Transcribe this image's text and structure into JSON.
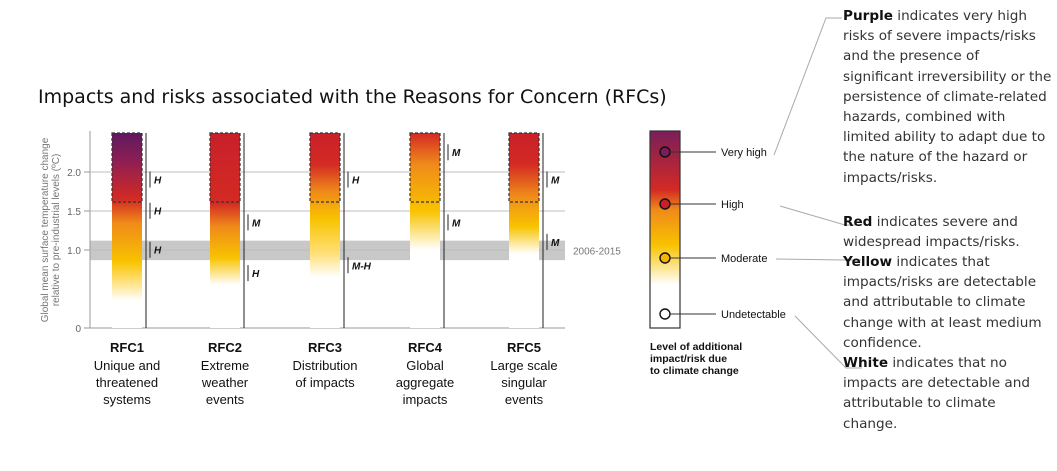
{
  "chart_data": {
    "type": "bar",
    "title": "Impacts and risks associated with the Reasons for Concern (RFCs)",
    "ylabel_line1": "Global mean surface temperature change",
    "ylabel_line2": "relative to pre-industrial levels (ºC)",
    "ylim": [
      0,
      2.5
    ],
    "yticks": [
      "0",
      "1.0",
      "1.5",
      "2.0"
    ],
    "ytick_values": [
      0,
      1.0,
      1.5,
      2.0
    ],
    "reference_band": {
      "label": "2006-2015",
      "y0": 0.87,
      "y1": 1.12
    },
    "series": [
      {
        "code": "RFC1",
        "desc": [
          "Unique and",
          "threatened",
          "systems"
        ],
        "stops": [
          [
            0.35,
            "#ffffff"
          ],
          [
            0.6,
            "#ffe07a"
          ],
          [
            0.85,
            "#f8c300"
          ],
          [
            1.35,
            "#ef8a1a"
          ],
          [
            1.65,
            "#d42a23"
          ],
          [
            2.15,
            "#8c1e55"
          ],
          [
            2.5,
            "#5e1a5e"
          ]
        ],
        "confidence": [
          {
            "y": 0.85,
            "label": "H"
          },
          {
            "y": 1.35,
            "label": "H"
          },
          {
            "y": 1.75,
            "label": "H"
          }
        ]
      },
      {
        "code": "RFC2",
        "desc": [
          "Extreme",
          "weather",
          "events"
        ],
        "stops": [
          [
            0.55,
            "#ffffff"
          ],
          [
            0.9,
            "#f8c300"
          ],
          [
            1.3,
            "#ef8a1a"
          ],
          [
            1.6,
            "#d42a23"
          ],
          [
            2.5,
            "#c8202a"
          ]
        ],
        "confidence": [
          {
            "y": 0.55,
            "label": "H"
          },
          {
            "y": 1.2,
            "label": "M"
          }
        ]
      },
      {
        "code": "RFC3",
        "desc": [
          "Distribution",
          "of impacts"
        ],
        "stops": [
          [
            0.65,
            "#ffffff"
          ],
          [
            0.95,
            "#ffe07a"
          ],
          [
            1.4,
            "#f8c300"
          ],
          [
            1.75,
            "#ef8a1a"
          ],
          [
            2.1,
            "#d42a23"
          ],
          [
            2.5,
            "#c8202a"
          ]
        ],
        "confidence": [
          {
            "y": 0.65,
            "label": "M-H"
          },
          {
            "y": 1.75,
            "label": "H"
          }
        ]
      },
      {
        "code": "RFC4",
        "desc": [
          "Global",
          "aggregate",
          "impacts"
        ],
        "stops": [
          [
            1.0,
            "#ffffff"
          ],
          [
            1.5,
            "#f8c300"
          ],
          [
            2.1,
            "#ef8a1a"
          ],
          [
            2.5,
            "#d42a23"
          ]
        ],
        "confidence": [
          {
            "y": 1.2,
            "label": "M"
          },
          {
            "y": 2.1,
            "label": "M"
          }
        ]
      },
      {
        "code": "RFC5",
        "desc": [
          "Large scale",
          "singular",
          "events"
        ],
        "stops": [
          [
            0.95,
            "#ffffff"
          ],
          [
            1.3,
            "#f8c300"
          ],
          [
            1.7,
            "#ef8a1a"
          ],
          [
            2.1,
            "#d42a23"
          ],
          [
            2.5,
            "#c8202a"
          ]
        ],
        "confidence": [
          {
            "y": 0.95,
            "label": "M"
          },
          {
            "y": 1.75,
            "label": "M"
          }
        ]
      }
    ],
    "legend": {
      "levels": [
        "Very high",
        "High",
        "Moderate",
        "Undetectable"
      ],
      "colors": [
        "#7a1e5a",
        "#d42a23",
        "#f8c300",
        "#ffffff"
      ],
      "caption": [
        "Level of additional",
        "impact/risk due",
        "to climate change"
      ]
    }
  },
  "notes": [
    {
      "color_word": "Purple",
      "text": " indicates very high risks of severe impacts/risks and the presence of significant irreversibility or the persistence of climate-related hazards, combined with limited ability to adapt due to the nature of the hazard or impacts/risks."
    },
    {
      "color_word": "Red",
      "text": " indicates severe and widespread impacts/risks."
    },
    {
      "color_word": "Yellow",
      "text": " indicates that impacts/risks are detectable and attributable to climate change with at least medium confidence."
    },
    {
      "color_word": "White",
      "text": " indicates that no impacts are detectable and attributable to climate change."
    }
  ]
}
